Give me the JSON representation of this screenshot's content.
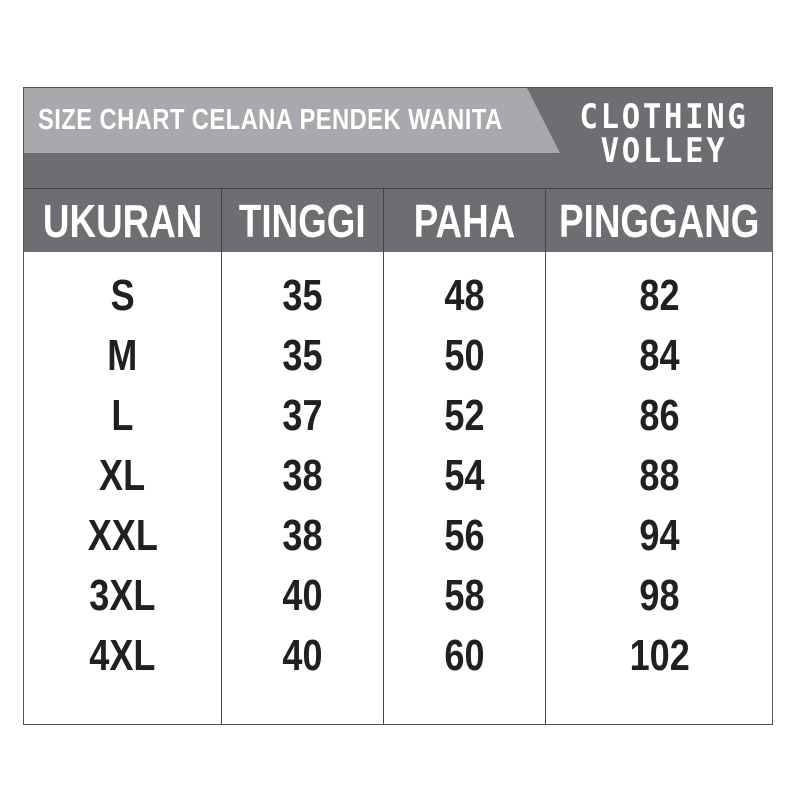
{
  "title": "SIZE CHART CELANA PENDEK WANITA",
  "logo": {
    "line1": "CLOTHING",
    "line2": "VOLLEY"
  },
  "colors": {
    "dark_gray": "#6d6e71",
    "light_gray": "#a7a9ac",
    "text": "#231f20"
  },
  "headers": [
    "UKURAN",
    "TINGGI",
    "PAHA",
    "PINGGANG"
  ],
  "rows": [
    [
      "S",
      "35",
      "48",
      "82"
    ],
    [
      "M",
      "35",
      "50",
      "84"
    ],
    [
      "L",
      "37",
      "52",
      "86"
    ],
    [
      "XL",
      "38",
      "54",
      "88"
    ],
    [
      "XXL",
      "38",
      "56",
      "94"
    ],
    [
      "3XL",
      "40",
      "58",
      "98"
    ],
    [
      "4XL",
      "40",
      "60",
      "102"
    ]
  ]
}
